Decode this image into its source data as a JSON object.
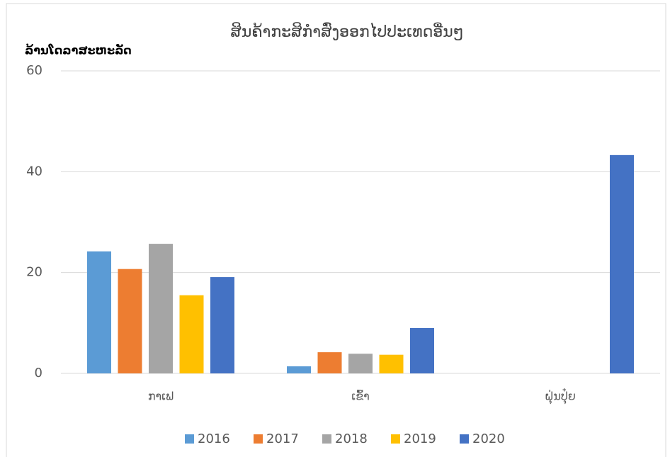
{
  "chart_data": {
    "type": "bar",
    "title": "ສິນຄ້າກະສິກຳສົ່ງອອກໄປປະເທດອື່ນໆ",
    "y_label": "ລ້ານໂດລາສະຫະລັດ",
    "categories": [
      "ກາເຟ",
      "ເຂົ້າ",
      "ຝຸ່ນປຸ໋ຍ"
    ],
    "series": [
      {
        "name": "2016",
        "color": "#5b9bd5",
        "values": [
          24.2,
          1.4,
          0
        ]
      },
      {
        "name": "2017",
        "color": "#ed7d31",
        "values": [
          20.7,
          4.2,
          0
        ]
      },
      {
        "name": "2018",
        "color": "#a5a5a5",
        "values": [
          25.7,
          3.9,
          0
        ]
      },
      {
        "name": "2019",
        "color": "#ffc000",
        "values": [
          15.5,
          3.7,
          0
        ]
      },
      {
        "name": "2020",
        "color": "#4472c4",
        "values": [
          19.1,
          9.0,
          43.3
        ]
      }
    ],
    "ylim": [
      0,
      60
    ],
    "yticks": [
      0,
      20,
      40,
      60
    ],
    "grid": true,
    "legend": "bottom"
  }
}
